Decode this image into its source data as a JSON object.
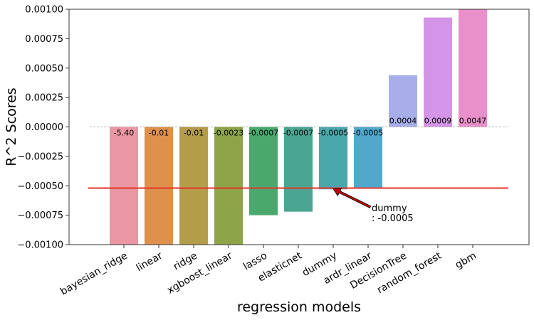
{
  "chart_data": {
    "type": "bar",
    "xlabel": "regression models",
    "ylabel": "R^2 Scores",
    "ylim": [
      -0.001,
      0.001
    ],
    "yticks": [
      0.001,
      0.00075,
      0.0005,
      0.00025,
      0.0,
      -0.00025,
      -0.0005,
      -0.00075,
      -0.001
    ],
    "ytick_labels": [
      "0.00100",
      "0.00075",
      "0.00050",
      "0.00025",
      "0.00000",
      "−0.00025",
      "−0.00050",
      "−0.00075",
      "−0.00100"
    ],
    "categories": [
      "bayesian_ridge",
      "linear",
      "ridge",
      "xgboost_linear",
      "lasso",
      "elasticnet",
      "dummy",
      "ardr_linear",
      "DecisionTree",
      "random_forest",
      "gbm"
    ],
    "values": [
      -5.4,
      -0.01,
      -0.01,
      -0.0023,
      -0.0007,
      -0.0007,
      -0.0005,
      -0.0005,
      0.0004,
      0.0009,
      0.0047
    ],
    "displayed_values": [
      -0.001,
      -0.001,
      -0.001,
      -0.001,
      -0.00075,
      -0.00072,
      -0.00053,
      -0.00052,
      0.00044,
      0.00093,
      0.001
    ],
    "value_labels": [
      "-5.40",
      "-0.01",
      "-0.01",
      "-0.0023",
      "-0.0007",
      "-0.0007",
      "-0.0005",
      "-0.0005",
      "0.0004",
      "0.0009",
      "0.0047"
    ],
    "colors": [
      "#ea96a3",
      "#dd914d",
      "#b39d49",
      "#8da448",
      "#4ba86d",
      "#4aa592",
      "#4aa7ab",
      "#52a8cc",
      "#a8aeea",
      "#d495e8",
      "#e98fca"
    ],
    "reference_line": {
      "value": -0.00052,
      "color": "#e8332a"
    },
    "zero_line": {
      "value": 0.0,
      "style": "dashed",
      "color": "#999999"
    },
    "annotation": {
      "text_lines": [
        "dummy",
        ": -0.0005"
      ],
      "target_category": "dummy",
      "target_value": -0.00052,
      "arrow_color": "#c00000"
    },
    "grid": false,
    "legend": "none"
  }
}
